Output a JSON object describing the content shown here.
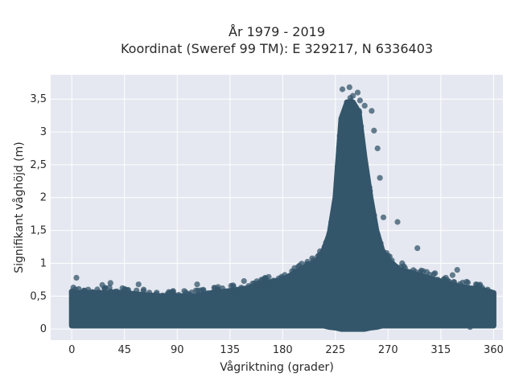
{
  "chart_data": {
    "type": "scatter",
    "title_line1": "År 1979 - 2019",
    "title_line2": "Koordinat (Sweref 99 TM): E 329217, N 6336403",
    "xlabel": "Vågriktning (grader)",
    "ylabel": "Signifikant våghöjd (m)",
    "xlim": [
      -18,
      368
    ],
    "ylim": [
      -0.17,
      3.87
    ],
    "x_ticks": [
      0,
      45,
      90,
      135,
      180,
      225,
      270,
      315,
      360
    ],
    "y_ticks": [
      0,
      0.5,
      1,
      1.5,
      2,
      2.5,
      3,
      3.5
    ],
    "y_tick_labels": [
      "0",
      "0,5",
      "1",
      "1,5",
      "2",
      "2,5",
      "3",
      "3,5"
    ],
    "grid": true,
    "marker_color": "#34566b",
    "plot_bg": "#e5e8f0",
    "envelope": {
      "direction": [
        0,
        15,
        30,
        45,
        60,
        75,
        90,
        105,
        120,
        135,
        150,
        165,
        180,
        190,
        200,
        210,
        215,
        220,
        225,
        230,
        235,
        240,
        245,
        250,
        255,
        260,
        265,
        270,
        280,
        290,
        300,
        310,
        320,
        330,
        340,
        350,
        360
      ],
      "upper": [
        0.55,
        0.55,
        0.55,
        0.55,
        0.52,
        0.5,
        0.5,
        0.5,
        0.55,
        0.58,
        0.62,
        0.7,
        0.75,
        0.85,
        0.95,
        1.05,
        1.2,
        1.45,
        2.0,
        3.2,
        3.45,
        3.45,
        3.3,
        2.6,
        2.0,
        1.5,
        1.2,
        1.05,
        0.9,
        0.85,
        0.8,
        0.75,
        0.7,
        0.65,
        0.62,
        0.6,
        0.55
      ],
      "lower": [
        0.05,
        0.05,
        0.05,
        0.05,
        0.05,
        0.05,
        0.05,
        0.05,
        0.05,
        0.05,
        0.05,
        0.05,
        0.05,
        0.05,
        0.05,
        0.05,
        0.05,
        0.03,
        0.02,
        0.0,
        0.0,
        0.0,
        0.0,
        0.0,
        0.02,
        0.03,
        0.05,
        0.05,
        0.05,
        0.05,
        0.05,
        0.05,
        0.05,
        0.05,
        0.05,
        0.05,
        0.05
      ]
    },
    "outliers": [
      {
        "x": 237,
        "y": 3.68
      },
      {
        "x": 231,
        "y": 3.65
      },
      {
        "x": 244,
        "y": 3.6
      },
      {
        "x": 240,
        "y": 3.55
      },
      {
        "x": 246,
        "y": 3.48
      },
      {
        "x": 250,
        "y": 3.4
      },
      {
        "x": 256,
        "y": 3.32
      },
      {
        "x": 258,
        "y": 3.02
      },
      {
        "x": 261,
        "y": 2.75
      },
      {
        "x": 263,
        "y": 2.3
      },
      {
        "x": 266,
        "y": 1.7
      },
      {
        "x": 278,
        "y": 1.63
      },
      {
        "x": 295,
        "y": 1.23
      },
      {
        "x": 210,
        "y": 1.02
      },
      {
        "x": 204,
        "y": 0.95
      },
      {
        "x": 282,
        "y": 1.0
      },
      {
        "x": 4,
        "y": 0.78
      },
      {
        "x": 33,
        "y": 0.7
      },
      {
        "x": 26,
        "y": 0.67
      },
      {
        "x": 57,
        "y": 0.68
      },
      {
        "x": 107,
        "y": 0.68
      },
      {
        "x": 122,
        "y": 0.62
      },
      {
        "x": 147,
        "y": 0.73
      },
      {
        "x": 165,
        "y": 0.72
      },
      {
        "x": 329,
        "y": 0.9
      },
      {
        "x": 345,
        "y": 0.68
      },
      {
        "x": 325,
        "y": 0.82
      },
      {
        "x": 310,
        "y": 0.85
      },
      {
        "x": 300,
        "y": 0.88
      },
      {
        "x": 337,
        "y": 0.72
      },
      {
        "x": 14,
        "y": 0.6
      },
      {
        "x": 320,
        "y": 0.08
      },
      {
        "x": 340,
        "y": 0.03
      },
      {
        "x": 355,
        "y": 0.6
      },
      {
        "x": 188,
        "y": 0.88
      },
      {
        "x": 196,
        "y": 0.9
      }
    ]
  }
}
